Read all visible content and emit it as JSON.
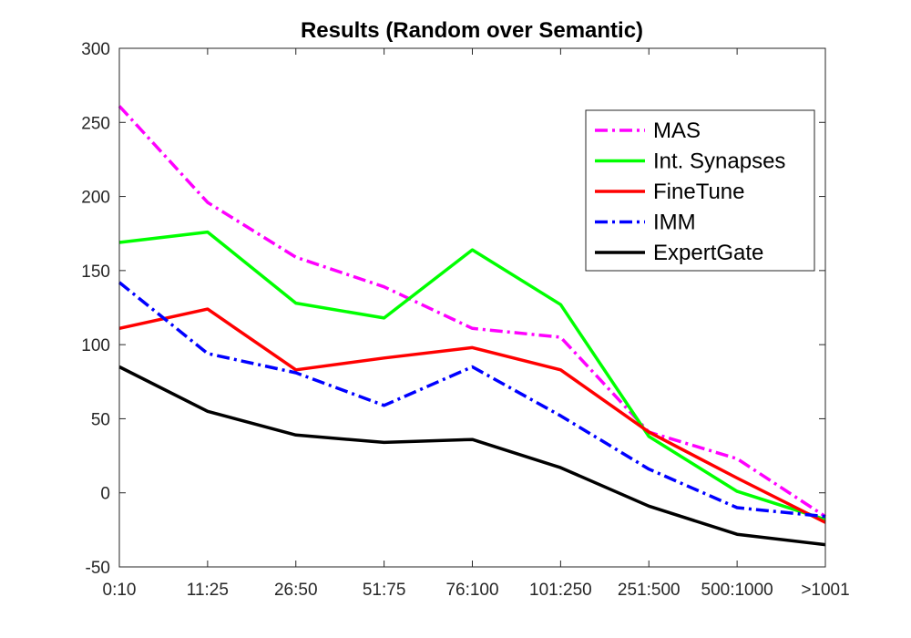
{
  "chart_data": {
    "type": "line",
    "title": "Results (Random over Semantic)",
    "xlabel": "",
    "ylabel": "",
    "categories": [
      "0:10",
      "11:25",
      "26:50",
      "51:75",
      "76:100",
      "101:250",
      "251:500",
      "500:1000",
      ">1001"
    ],
    "ylim": [
      -50,
      300
    ],
    "yticks": [
      -50,
      0,
      50,
      100,
      150,
      200,
      250,
      300
    ],
    "grid": false,
    "legend_position": "top-right",
    "series": [
      {
        "name": "MAS",
        "color": "#ff00ff",
        "dash": "dashdot",
        "values": [
          261,
          196,
          159,
          139,
          111,
          105,
          41,
          23,
          -16
        ]
      },
      {
        "name": "Int. Synapses",
        "color": "#00ff00",
        "dash": "solid",
        "values": [
          169,
          176,
          128,
          118,
          164,
          127,
          38,
          1,
          -18
        ]
      },
      {
        "name": "FineTune",
        "color": "#ff0000",
        "dash": "solid",
        "values": [
          111,
          124,
          83,
          91,
          98,
          83,
          41,
          10,
          -20
        ]
      },
      {
        "name": "IMM",
        "color": "#0000ff",
        "dash": "dashdot",
        "values": [
          142,
          94,
          81,
          59,
          85,
          52,
          16,
          -10,
          -16
        ]
      },
      {
        "name": "ExpertGate",
        "color": "#000000",
        "dash": "solid",
        "values": [
          85,
          55,
          39,
          34,
          36,
          17,
          -9,
          -28,
          -35
        ]
      }
    ]
  }
}
